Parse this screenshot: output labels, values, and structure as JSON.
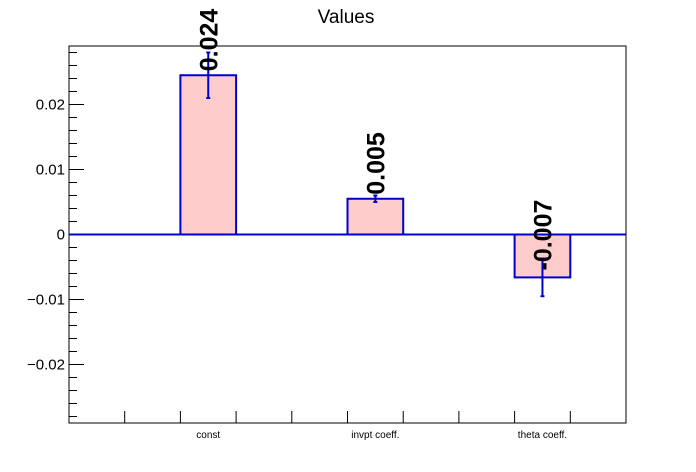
{
  "chart_data": {
    "type": "bar",
    "title": "Values",
    "xlabel": "",
    "ylabel": "",
    "categories": [
      "const",
      "invpt coeff.",
      "theta coeff."
    ],
    "values": [
      0.0245,
      0.0055,
      -0.0066
    ],
    "errors": [
      0.0035,
      0.0005,
      0.0029
    ],
    "value_labels": [
      "0.024",
      "0.005",
      "-0.007"
    ],
    "ylim": [
      -0.029,
      0.029
    ],
    "yticks": [
      {
        "value": -0.02,
        "label": "−0.02"
      },
      {
        "value": -0.01,
        "label": "−0.01"
      },
      {
        "value": 0,
        "label": "0"
      },
      {
        "value": 0.01,
        "label": "0.01"
      },
      {
        "value": 0.02,
        "label": "0.02"
      }
    ],
    "grid": false,
    "colors": {
      "bar_fill": "#ffcccc",
      "bar_edge": "#0000cc",
      "baseline": "#0000cc"
    }
  }
}
